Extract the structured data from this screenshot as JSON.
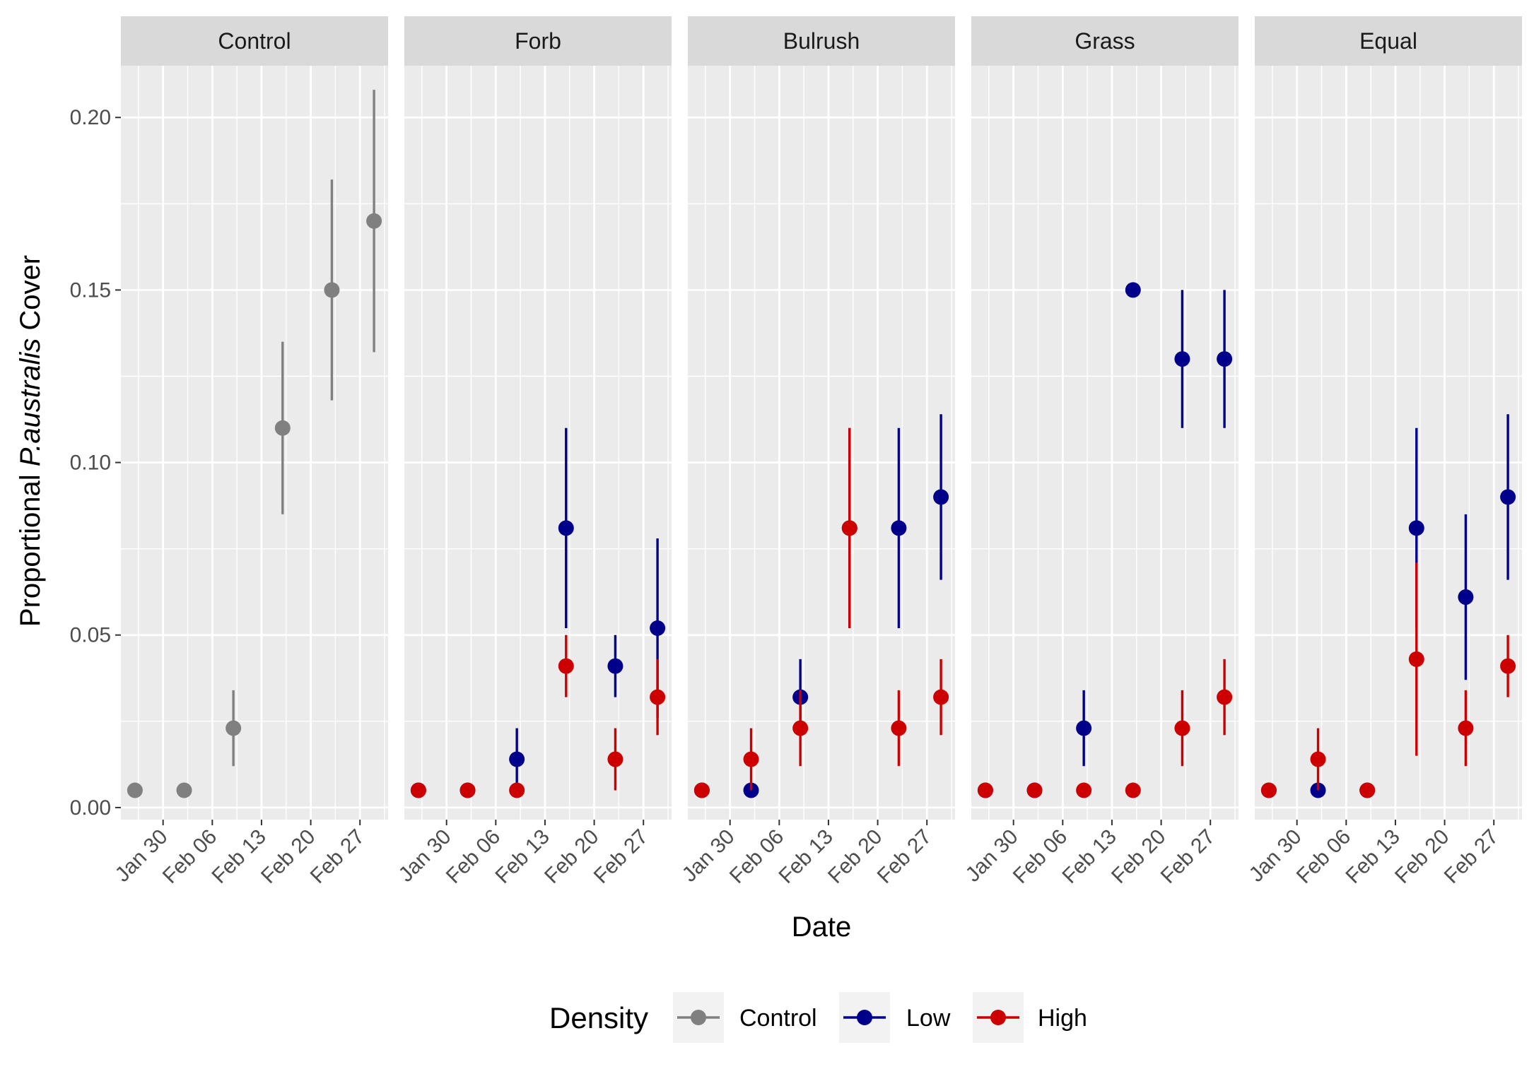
{
  "chart_data": {
    "type": "scatter",
    "subtype": "point-range faceted",
    "xlabel": "Date",
    "ylabel": {
      "prefix": "Proportional ",
      "italic": "P.australis",
      "suffix": " Cover"
    },
    "ylim": [
      -0.0035,
      0.215
    ],
    "xlim": [
      "2018-01-24",
      "2018-03-03"
    ],
    "y_ticks": [
      0.0,
      0.05,
      0.1,
      0.15,
      0.2
    ],
    "y_tick_labels": [
      "0.00",
      "0.05",
      "0.10",
      "0.15",
      "0.20"
    ],
    "x_ticks": [
      "2018-01-30",
      "2018-02-06",
      "2018-02-13",
      "2018-02-20",
      "2018-02-27"
    ],
    "x_tick_labels": [
      "Jan 30",
      "Feb 06",
      "Feb 13",
      "Feb 20",
      "Feb 27"
    ],
    "grid": true,
    "colors": {
      "Control": "#808080",
      "Low": "#00008B",
      "High": "#CC0000"
    },
    "legend": {
      "title": "Density",
      "position": "bottom",
      "entries": [
        "Control",
        "Low",
        "High"
      ]
    },
    "facets": [
      {
        "name": "Control",
        "series": [
          {
            "name": "Control",
            "points": [
              {
                "x": "2018-01-26",
                "y": 0.005,
                "lo": 0.005,
                "hi": 0.005
              },
              {
                "x": "2018-02-02",
                "y": 0.005,
                "lo": 0.005,
                "hi": 0.005
              },
              {
                "x": "2018-02-09",
                "y": 0.023,
                "lo": 0.012,
                "hi": 0.034
              },
              {
                "x": "2018-02-16",
                "y": 0.11,
                "lo": 0.085,
                "hi": 0.135
              },
              {
                "x": "2018-02-23",
                "y": 0.15,
                "lo": 0.118,
                "hi": 0.182
              },
              {
                "x": "2018-03-01",
                "y": 0.17,
                "lo": 0.132,
                "hi": 0.208
              }
            ]
          }
        ]
      },
      {
        "name": "Forb",
        "series": [
          {
            "name": "Low",
            "points": [
              {
                "x": "2018-01-26",
                "y": 0.005,
                "lo": 0.005,
                "hi": 0.005
              },
              {
                "x": "2018-02-02",
                "y": 0.005,
                "lo": 0.005,
                "hi": 0.005
              },
              {
                "x": "2018-02-09",
                "y": 0.014,
                "lo": 0.005,
                "hi": 0.023
              },
              {
                "x": "2018-02-16",
                "y": 0.081,
                "lo": 0.052,
                "hi": 0.11
              },
              {
                "x": "2018-02-23",
                "y": 0.041,
                "lo": 0.032,
                "hi": 0.05
              },
              {
                "x": "2018-03-01",
                "y": 0.052,
                "lo": 0.026,
                "hi": 0.078
              }
            ]
          },
          {
            "name": "High",
            "points": [
              {
                "x": "2018-01-26",
                "y": 0.005,
                "lo": 0.005,
                "hi": 0.005
              },
              {
                "x": "2018-02-02",
                "y": 0.005,
                "lo": 0.005,
                "hi": 0.005
              },
              {
                "x": "2018-02-09",
                "y": 0.005,
                "lo": 0.005,
                "hi": 0.005
              },
              {
                "x": "2018-02-16",
                "y": 0.041,
                "lo": 0.032,
                "hi": 0.05
              },
              {
                "x": "2018-02-23",
                "y": 0.014,
                "lo": 0.005,
                "hi": 0.023
              },
              {
                "x": "2018-03-01",
                "y": 0.032,
                "lo": 0.021,
                "hi": 0.043
              }
            ]
          }
        ]
      },
      {
        "name": "Bulrush",
        "series": [
          {
            "name": "Low",
            "points": [
              {
                "x": "2018-01-26",
                "y": 0.005,
                "lo": 0.005,
                "hi": 0.005
              },
              {
                "x": "2018-02-02",
                "y": 0.005,
                "lo": 0.005,
                "hi": 0.005
              },
              {
                "x": "2018-02-09",
                "y": 0.032,
                "lo": 0.021,
                "hi": 0.043
              },
              {
                "x": "2018-02-16",
                "y": 0.081,
                "lo": 0.052,
                "hi": 0.11
              },
              {
                "x": "2018-02-23",
                "y": 0.081,
                "lo": 0.052,
                "hi": 0.11
              },
              {
                "x": "2018-03-01",
                "y": 0.09,
                "lo": 0.066,
                "hi": 0.114
              }
            ]
          },
          {
            "name": "High",
            "points": [
              {
                "x": "2018-01-26",
                "y": 0.005,
                "lo": 0.005,
                "hi": 0.005
              },
              {
                "x": "2018-02-02",
                "y": 0.014,
                "lo": 0.005,
                "hi": 0.023
              },
              {
                "x": "2018-02-09",
                "y": 0.023,
                "lo": 0.012,
                "hi": 0.034
              },
              {
                "x": "2018-02-16",
                "y": 0.081,
                "lo": 0.052,
                "hi": 0.11
              },
              {
                "x": "2018-02-23",
                "y": 0.023,
                "lo": 0.012,
                "hi": 0.034
              },
              {
                "x": "2018-03-01",
                "y": 0.032,
                "lo": 0.021,
                "hi": 0.043
              }
            ]
          }
        ]
      },
      {
        "name": "Grass",
        "series": [
          {
            "name": "Low",
            "points": [
              {
                "x": "2018-01-26",
                "y": 0.005,
                "lo": 0.005,
                "hi": 0.005
              },
              {
                "x": "2018-02-02",
                "y": 0.005,
                "lo": 0.005,
                "hi": 0.005
              },
              {
                "x": "2018-02-09",
                "y": 0.023,
                "lo": 0.012,
                "hi": 0.034
              },
              {
                "x": "2018-02-16",
                "y": 0.15,
                "lo": 0.15,
                "hi": 0.15
              },
              {
                "x": "2018-02-23",
                "y": 0.13,
                "lo": 0.11,
                "hi": 0.15
              },
              {
                "x": "2018-03-01",
                "y": 0.13,
                "lo": 0.11,
                "hi": 0.15
              }
            ]
          },
          {
            "name": "High",
            "points": [
              {
                "x": "2018-01-26",
                "y": 0.005,
                "lo": 0.005,
                "hi": 0.005
              },
              {
                "x": "2018-02-02",
                "y": 0.005,
                "lo": 0.005,
                "hi": 0.005
              },
              {
                "x": "2018-02-09",
                "y": 0.005,
                "lo": 0.005,
                "hi": 0.005
              },
              {
                "x": "2018-02-16",
                "y": 0.005,
                "lo": 0.005,
                "hi": 0.005
              },
              {
                "x": "2018-02-23",
                "y": 0.023,
                "lo": 0.012,
                "hi": 0.034
              },
              {
                "x": "2018-03-01",
                "y": 0.032,
                "lo": 0.021,
                "hi": 0.043
              }
            ]
          }
        ]
      },
      {
        "name": "Equal",
        "series": [
          {
            "name": "Low",
            "points": [
              {
                "x": "2018-01-26",
                "y": 0.005,
                "lo": 0.005,
                "hi": 0.005
              },
              {
                "x": "2018-02-02",
                "y": 0.005,
                "lo": 0.005,
                "hi": 0.005
              },
              {
                "x": "2018-02-09",
                "y": 0.005,
                "lo": 0.005,
                "hi": 0.005
              },
              {
                "x": "2018-02-16",
                "y": 0.081,
                "lo": 0.052,
                "hi": 0.11
              },
              {
                "x": "2018-02-23",
                "y": 0.061,
                "lo": 0.037,
                "hi": 0.085
              },
              {
                "x": "2018-03-01",
                "y": 0.09,
                "lo": 0.066,
                "hi": 0.114
              }
            ]
          },
          {
            "name": "High",
            "points": [
              {
                "x": "2018-01-26",
                "y": 0.005,
                "lo": 0.005,
                "hi": 0.005
              },
              {
                "x": "2018-02-02",
                "y": 0.014,
                "lo": 0.005,
                "hi": 0.023
              },
              {
                "x": "2018-02-09",
                "y": 0.005,
                "lo": 0.005,
                "hi": 0.005
              },
              {
                "x": "2018-02-16",
                "y": 0.043,
                "lo": 0.015,
                "hi": 0.071
              },
              {
                "x": "2018-02-23",
                "y": 0.023,
                "lo": 0.012,
                "hi": 0.034
              },
              {
                "x": "2018-03-01",
                "y": 0.041,
                "lo": 0.032,
                "hi": 0.05
              }
            ]
          }
        ]
      }
    ]
  }
}
